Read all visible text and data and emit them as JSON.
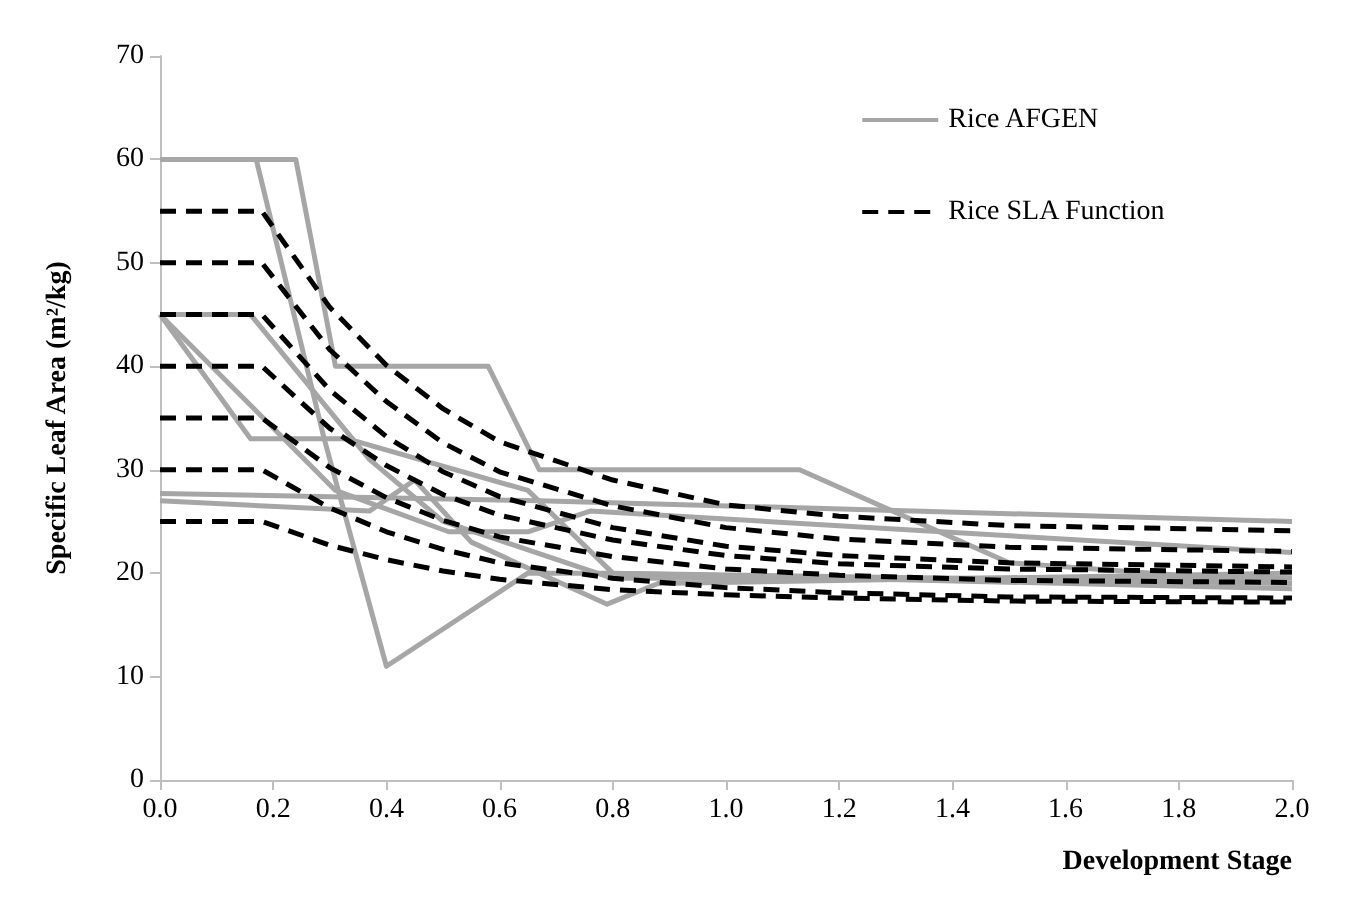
{
  "chart_data": {
    "type": "line",
    "xlabel": "Development Stage",
    "ylabel": "Specific Leaf Area (m²/kg)",
    "xlim": [
      0,
      2
    ],
    "xticks": [
      {
        "value": 0,
        "label": "0.0"
      },
      {
        "value": 0.2,
        "label": "0.2"
      },
      {
        "value": 0.4,
        "label": "0.4"
      },
      {
        "value": 0.6,
        "label": "0.6"
      },
      {
        "value": 0.8,
        "label": "0.8"
      },
      {
        "value": 1,
        "label": "1.0"
      },
      {
        "value": 1.2,
        "label": "1.2"
      },
      {
        "value": 1.4,
        "label": "1.4"
      },
      {
        "value": 1.6,
        "label": "1.6"
      },
      {
        "value": 1.8,
        "label": "1.8"
      },
      {
        "value": 2,
        "label": "2.0"
      }
    ],
    "ylim": [
      0,
      70
    ],
    "yticks": [
      0,
      10,
      20,
      30,
      40,
      50,
      60,
      70
    ],
    "grid": false,
    "legend": "top right",
    "marker": "none",
    "series": [
      {
        "name": "Rice AFGEN",
        "color": "#a6a6a6",
        "line_style": "solid",
        "x": [
          0,
          0.24,
          0.31,
          0.58,
          0.67,
          1.13,
          1.5,
          2.0
        ],
        "values": [
          60,
          60,
          40,
          40,
          30,
          30,
          21,
          19
        ]
      },
      {
        "color": "#a6a6a6",
        "line_style": "solid",
        "x": [
          0,
          0.17,
          0.29,
          0.4,
          0.65,
          0.8,
          2.0
        ],
        "values": [
          60,
          60,
          33,
          11,
          20,
          20,
          18.5
        ]
      },
      {
        "color": "#a6a6a6",
        "line_style": "solid",
        "x": [
          0,
          0.16,
          0.37,
          0.5,
          0.8,
          2.0
        ],
        "values": [
          45,
          45,
          31,
          25,
          19.5,
          19.5
        ]
      },
      {
        "color": "#a6a6a6",
        "line_style": "solid",
        "x": [
          0,
          0.16,
          0.33,
          0.65,
          0.8,
          2.0
        ],
        "values": [
          45,
          33,
          33,
          28,
          20,
          19
        ]
      },
      {
        "color": "#a6a6a6",
        "line_style": "solid",
        "x": [
          0,
          0.31,
          0.51,
          0.65,
          0.76,
          2.0
        ],
        "values": [
          45,
          28,
          24,
          24,
          26,
          22
        ]
      },
      {
        "color": "#a6a6a6",
        "line_style": "solid",
        "x": [
          0,
          0.67,
          2.0
        ],
        "values": [
          27.7,
          27,
          25
        ]
      },
      {
        "color": "#a6a6a6",
        "line_style": "solid",
        "x": [
          0,
          0.37,
          0.45,
          0.55,
          0.79,
          0.88,
          2.0
        ],
        "values": [
          27,
          26,
          29,
          23,
          17,
          19,
          20
        ]
      },
      {
        "name": "Rice SLA Function",
        "color": "#000000",
        "line_style": "dashed",
        "x": [
          0,
          0.18,
          0.3,
          0.4,
          0.5,
          0.6,
          0.8,
          1.0,
          1.2,
          1.5,
          2.0
        ],
        "values": [
          55,
          55,
          45.7,
          40.1,
          35.9,
          32.7,
          29,
          26.6,
          25.5,
          24.6,
          24.1
        ]
      },
      {
        "color": "#000000",
        "line_style": "dashed",
        "x": [
          0,
          0.18,
          0.3,
          0.4,
          0.5,
          0.6,
          0.8,
          1.0,
          1.2,
          1.5,
          2.0
        ],
        "values": [
          50,
          50,
          41.6,
          36.6,
          32.6,
          29.8,
          26.5,
          24.4,
          23.3,
          22.5,
          22.1
        ]
      },
      {
        "color": "#000000",
        "line_style": "dashed",
        "x": [
          0,
          0.18,
          0.3,
          0.4,
          0.5,
          0.6,
          0.8,
          1.0,
          1.2,
          1.5,
          2.0
        ],
        "values": [
          45,
          45,
          37.7,
          33.2,
          29.8,
          27.4,
          24.4,
          22.6,
          21.7,
          21,
          20.6
        ]
      },
      {
        "color": "#000000",
        "line_style": "dashed",
        "x": [
          0,
          0.18,
          0.3,
          0.4,
          0.5,
          0.6,
          0.8,
          1.0,
          1.2,
          1.5,
          2.0
        ],
        "values": [
          40,
          40,
          34,
          30.4,
          27.6,
          25.6,
          23.2,
          21.7,
          20.9,
          20.4,
          20.1
        ]
      },
      {
        "color": "#000000",
        "line_style": "dashed",
        "x": [
          0,
          0.18,
          0.3,
          0.4,
          0.5,
          0.6,
          0.8,
          1.0,
          1.2,
          1.5,
          2.0
        ],
        "values": [
          35,
          35,
          30.2,
          27.3,
          25.1,
          23.5,
          21.6,
          20.4,
          19.8,
          19.3,
          19.1
        ]
      },
      {
        "color": "#000000",
        "line_style": "dashed",
        "x": [
          0,
          0.18,
          0.3,
          0.4,
          0.5,
          0.6,
          0.8,
          1.0,
          1.2,
          1.5,
          2.0
        ],
        "values": [
          30,
          30,
          26.3,
          24,
          22.3,
          21,
          19.5,
          18.6,
          18.1,
          17.7,
          17.6
        ]
      },
      {
        "color": "#000000",
        "line_style": "dashed",
        "x": [
          0,
          0.18,
          0.3,
          0.4,
          0.5,
          0.6,
          0.8,
          1.0,
          1.2,
          1.5,
          2.0
        ],
        "values": [
          25,
          25,
          22.7,
          21.3,
          20.2,
          19.4,
          18.4,
          17.9,
          17.6,
          17.3,
          17.2
        ]
      }
    ]
  }
}
